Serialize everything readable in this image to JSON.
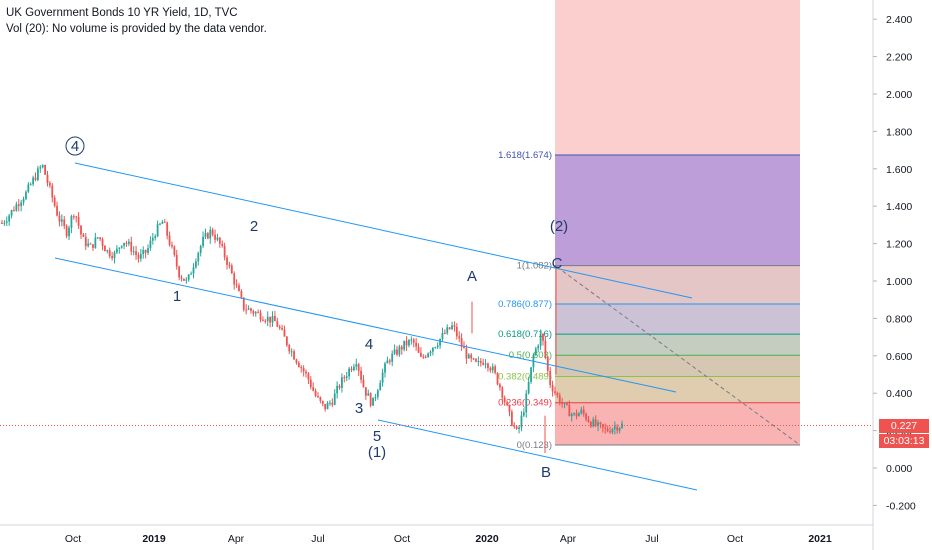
{
  "header": {
    "title": "UK Government Bonds 10 YR Yield, 1D, TVC",
    "volume_note": "Vol (20): No volume is provided by the data vendor."
  },
  "price_axis": {
    "ticks": [
      "2.400",
      "2.200",
      "2.000",
      "1.800",
      "1.600",
      "1.400",
      "1.200",
      "1.000",
      "0.800",
      "0.600",
      "0.400",
      "0.200",
      "0.000",
      "-0.200"
    ],
    "current_price": "0.227",
    "countdown": "03:03:13"
  },
  "time_axis": {
    "labels": [
      "Oct",
      "2019",
      "Apr",
      "Jul",
      "Oct",
      "2020",
      "Apr",
      "Jul",
      "Oct",
      "2021"
    ]
  },
  "colors": {
    "up": "#26a69a",
    "down": "#ef5350",
    "channel": "#2196f3",
    "wave_label": "#1e3a6e",
    "fib_red": "#f23645",
    "fib_blue": "#2962ff"
  },
  "fib_levels": [
    {
      "label": "1.618(1.674)",
      "value": 1.674,
      "color": "#3f51b5"
    },
    {
      "label": "1(1.082)",
      "value": 1.082,
      "color": "#787b86"
    },
    {
      "label": "0.786(0.877)",
      "value": 0.877,
      "color": "#2196f3"
    },
    {
      "label": "0.618(0.716)",
      "value": 0.716,
      "color": "#089981"
    },
    {
      "label": "0.5(0.603)",
      "value": 0.603,
      "color": "#4caf50"
    },
    {
      "label": "0.382(0.489)",
      "value": 0.489,
      "color": "#8bc34a"
    },
    {
      "label": "0.236(0.349)",
      "value": 0.349,
      "color": "#f23645"
    },
    {
      "label": "0(0.123)",
      "value": 0.123,
      "color": "#787b86"
    }
  ],
  "wave_labels": [
    "4",
    "1",
    "2",
    "3",
    "4",
    "5",
    "(1)",
    "A",
    "B",
    "C",
    "(2)"
  ],
  "chart_data": {
    "type": "candlestick",
    "title": "UK Government Bonds 10 YR Yield, 1D, TVC",
    "xlabel": "",
    "ylabel": "",
    "ylim": [
      -0.25,
      2.5
    ],
    "x_ticks": [
      "Oct",
      "2019",
      "Apr",
      "Jul",
      "Oct",
      "2020",
      "Apr",
      "Jul",
      "Oct",
      "2021"
    ],
    "series": [
      {
        "values": [
          1.31,
          1.36,
          1.42,
          1.47,
          1.55,
          1.62,
          1.48,
          1.34,
          1.26,
          1.38,
          1.22,
          1.18,
          1.24,
          1.16,
          1.14,
          1.22,
          1.18,
          1.12,
          1.16,
          1.26,
          1.32,
          1.18,
          1.04,
          0.99,
          1.12,
          1.22,
          1.27,
          1.2,
          1.1,
          0.98,
          0.86,
          0.84,
          0.82,
          0.8,
          0.78,
          0.7,
          0.62,
          0.55,
          0.48,
          0.38,
          0.32,
          0.36,
          0.45,
          0.52,
          0.58,
          0.42,
          0.34,
          0.48,
          0.58,
          0.62,
          0.66,
          0.68,
          0.58,
          0.63,
          0.67,
          0.72,
          0.76,
          0.66,
          0.58,
          0.55,
          0.58,
          0.52,
          0.42,
          0.28,
          0.18,
          0.35,
          0.6,
          0.72,
          0.46,
          0.38,
          0.32,
          0.28,
          0.3,
          0.25,
          0.22,
          0.2,
          0.22,
          0.23
        ]
      }
    ],
    "current_value": 0.227
  }
}
